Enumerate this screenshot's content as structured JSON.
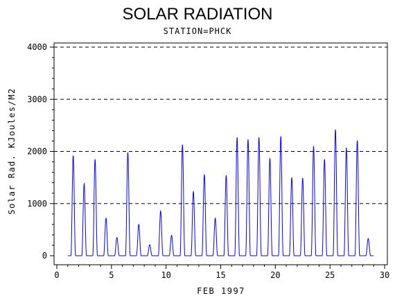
{
  "chart_data": {
    "type": "line",
    "title": "SOLAR RADIATION",
    "subtitle": "STATION=PHCK",
    "xlabel": "FEB 1997",
    "ylabel": "Solar Rad. KJoules/M2",
    "xlim": [
      0,
      30
    ],
    "ylim": [
      0,
      4000
    ],
    "xticks": [
      0,
      5,
      10,
      15,
      20,
      25,
      30
    ],
    "yticks": [
      0,
      1000,
      2000,
      3000,
      4000
    ],
    "grid": "horizontal dashed at y ticks",
    "series_color": "#0000ff",
    "daily_peaks": [
      {
        "day": 1.5,
        "value": 1920
      },
      {
        "day": 2.5,
        "value": 1380
      },
      {
        "day": 3.5,
        "value": 1850
      },
      {
        "day": 4.5,
        "value": 720
      },
      {
        "day": 5.5,
        "value": 350
      },
      {
        "day": 6.5,
        "value": 1980
      },
      {
        "day": 7.5,
        "value": 600
      },
      {
        "day": 8.5,
        "value": 210
      },
      {
        "day": 9.5,
        "value": 860
      },
      {
        "day": 10.5,
        "value": 390
      },
      {
        "day": 11.5,
        "value": 2130
      },
      {
        "day": 12.5,
        "value": 1230
      },
      {
        "day": 13.5,
        "value": 1560
      },
      {
        "day": 14.5,
        "value": 720
      },
      {
        "day": 15.5,
        "value": 1540
      },
      {
        "day": 16.5,
        "value": 2270
      },
      {
        "day": 17.5,
        "value": 2230
      },
      {
        "day": 18.5,
        "value": 2270
      },
      {
        "day": 19.5,
        "value": 1870
      },
      {
        "day": 20.5,
        "value": 2290
      },
      {
        "day": 21.5,
        "value": 1500
      },
      {
        "day": 22.5,
        "value": 1490
      },
      {
        "day": 23.5,
        "value": 2100
      },
      {
        "day": 24.5,
        "value": 1850
      },
      {
        "day": 25.5,
        "value": 2420
      },
      {
        "day": 26.5,
        "value": 2070
      },
      {
        "day": 27.5,
        "value": 2210
      },
      {
        "day": 28.5,
        "value": 330
      }
    ]
  }
}
